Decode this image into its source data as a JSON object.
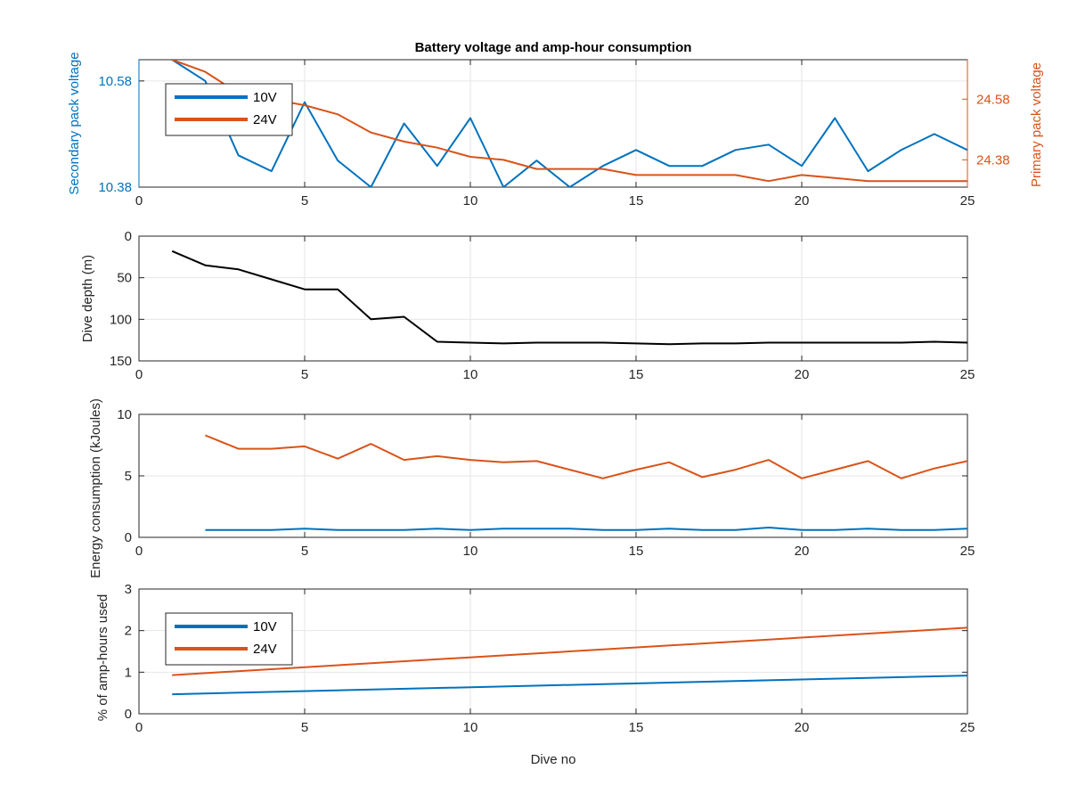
{
  "colors": {
    "ten_v": "#0072BD",
    "twenty_four_v": "#D95319",
    "depth": "#000000",
    "axis": "#262626",
    "grid": "#E6E6E6",
    "sec_axis": "#0072BD",
    "pri_axis": "#D95319"
  },
  "chart_data": [
    {
      "id": "voltage",
      "type": "line",
      "title": "Battery voltage and amp-hour consumption",
      "xlabel": "",
      "ylabel_left": "Secondary pack voltage",
      "ylabel_right": "Primary pack voltage",
      "xlim": [
        0,
        25
      ],
      "xticks": [
        0,
        5,
        10,
        15,
        20,
        25
      ],
      "ylim_left": [
        10.38,
        10.62
      ],
      "yticks_left": [
        10.38,
        10.58
      ],
      "ytick_labels_left": [
        "10.38",
        "10.58"
      ],
      "ylim_right": [
        24.29,
        24.71
      ],
      "yticks_right": [
        24.38,
        24.58
      ],
      "ytick_labels_right": [
        "24.38",
        "24.58"
      ],
      "grid": true,
      "legend_position": "top-left",
      "legend": [
        "10V",
        "24V"
      ],
      "series": [
        {
          "name": "10V",
          "axis": "left",
          "x": [
            1,
            2,
            3,
            4,
            5,
            6,
            7,
            8,
            9,
            10,
            11,
            12,
            13,
            14,
            15,
            16,
            17,
            18,
            19,
            20,
            21,
            22,
            23,
            24,
            25
          ],
          "values": [
            10.62,
            10.58,
            10.44,
            10.41,
            10.54,
            10.43,
            10.38,
            10.5,
            10.42,
            10.51,
            10.38,
            10.43,
            10.38,
            10.42,
            10.45,
            10.42,
            10.42,
            10.45,
            10.46,
            10.42,
            10.51,
            10.41,
            10.45,
            10.48,
            10.45
          ]
        },
        {
          "name": "24V",
          "axis": "right",
          "x": [
            1,
            2,
            3,
            4,
            5,
            6,
            7,
            8,
            9,
            10,
            11,
            12,
            13,
            14,
            15,
            16,
            17,
            18,
            19,
            20,
            21,
            22,
            23,
            24,
            25
          ],
          "values": [
            24.71,
            24.67,
            24.6,
            24.58,
            24.56,
            24.53,
            24.47,
            24.44,
            24.42,
            24.39,
            24.38,
            24.35,
            24.35,
            24.35,
            24.33,
            24.33,
            24.33,
            24.33,
            24.31,
            24.33,
            24.32,
            24.31,
            24.31,
            24.31,
            24.31
          ]
        }
      ]
    },
    {
      "id": "depth",
      "type": "line",
      "title": "",
      "xlabel": "",
      "ylabel": "Dive depth (m)",
      "xlim": [
        0,
        25
      ],
      "xticks": [
        0,
        5,
        10,
        15,
        20,
        25
      ],
      "ylim": [
        0,
        150
      ],
      "yticks": [
        0,
        50,
        100,
        150
      ],
      "y_reversed": true,
      "grid": true,
      "series": [
        {
          "x": [
            1,
            2,
            3,
            4,
            5,
            6,
            7,
            8,
            9,
            10,
            11,
            12,
            13,
            14,
            15,
            16,
            17,
            18,
            19,
            20,
            21,
            22,
            23,
            24,
            25
          ],
          "values": [
            18,
            35,
            40,
            52,
            64,
            64,
            100,
            97,
            127,
            128,
            129,
            128,
            128,
            128,
            129,
            130,
            129,
            129,
            128,
            128,
            128,
            128,
            128,
            127,
            128
          ]
        }
      ]
    },
    {
      "id": "energy",
      "type": "line",
      "title": "",
      "xlabel": "",
      "ylabel": "Energy consumption (kJoules)",
      "xlim": [
        0,
        25
      ],
      "xticks": [
        0,
        5,
        10,
        15,
        20,
        25
      ],
      "ylim": [
        0,
        10
      ],
      "yticks": [
        0,
        5,
        10
      ],
      "grid": true,
      "series": [
        {
          "name": "10V",
          "x": [
            2,
            3,
            4,
            5,
            6,
            7,
            8,
            9,
            10,
            11,
            12,
            13,
            14,
            15,
            16,
            17,
            18,
            19,
            20,
            21,
            22,
            23,
            24,
            25
          ],
          "values": [
            0.6,
            0.6,
            0.6,
            0.7,
            0.6,
            0.6,
            0.6,
            0.7,
            0.6,
            0.7,
            0.7,
            0.7,
            0.6,
            0.6,
            0.7,
            0.6,
            0.6,
            0.8,
            0.6,
            0.6,
            0.7,
            0.6,
            0.6,
            0.7
          ]
        },
        {
          "name": "24V",
          "x": [
            2,
            3,
            4,
            5,
            6,
            7,
            8,
            9,
            10,
            11,
            12,
            13,
            14,
            15,
            16,
            17,
            18,
            19,
            20,
            21,
            22,
            23,
            24,
            25
          ],
          "values": [
            8.3,
            7.2,
            7.2,
            7.4,
            6.4,
            7.6,
            6.3,
            6.6,
            6.3,
            6.1,
            6.2,
            5.5,
            4.8,
            5.5,
            6.1,
            4.9,
            5.5,
            6.3,
            4.8,
            5.5,
            6.2,
            4.8,
            5.6,
            6.2
          ]
        }
      ]
    },
    {
      "id": "amp_hours",
      "type": "line",
      "title": "",
      "xlabel": "Dive no",
      "ylabel": "% of amp-hours used",
      "xlim": [
        0,
        25
      ],
      "xticks": [
        0,
        5,
        10,
        15,
        20,
        25
      ],
      "ylim": [
        0,
        3
      ],
      "yticks": [
        0,
        1,
        2,
        3
      ],
      "grid": true,
      "legend_position": "top-left",
      "legend": [
        "10V",
        "24V"
      ],
      "series": [
        {
          "name": "10V",
          "x": [
            1,
            25
          ],
          "values": [
            0.47,
            0.92
          ]
        },
        {
          "name": "24V",
          "x": [
            1,
            25
          ],
          "values": [
            0.93,
            2.07
          ]
        }
      ]
    }
  ]
}
